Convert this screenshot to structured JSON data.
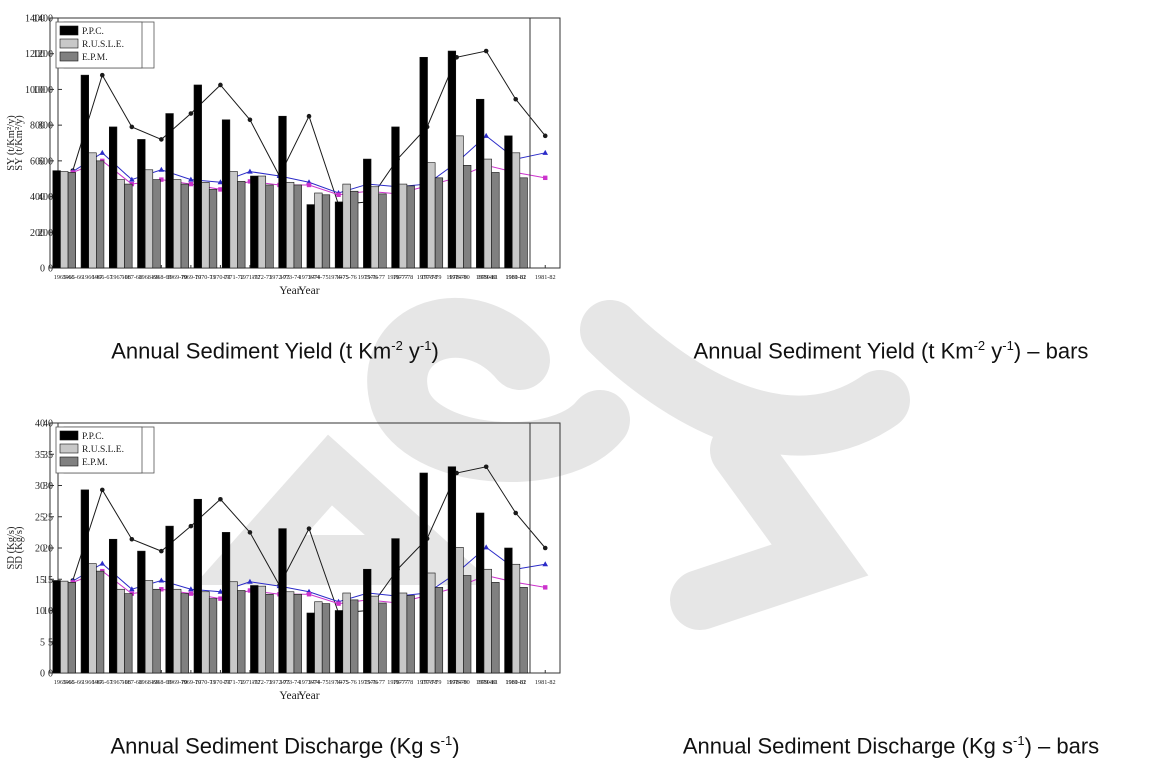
{
  "categories": [
    "1965-66",
    "1966-67",
    "1967-68",
    "1968-69",
    "1969-70",
    "1970-71",
    "1971-72",
    "1972-73",
    "1973-74",
    "1974-75",
    "1975-76",
    "1976-77",
    "1977-78",
    "1978-79",
    "1979-80",
    "1980-81",
    "1981-82"
  ],
  "captions": [
    {
      "text": "Annual Sediment Yield (t Km",
      "sup1": "-2",
      "mid": " y",
      "sup2": "-1",
      "tail": ")"
    },
    {
      "text": "Annual Sediment Yield (t Km",
      "sup1": "-2",
      "mid": " y",
      "sup2": "-1",
      "tail": ") – bars"
    },
    {
      "text": "Annual Sediment Discharge (Kg s",
      "sup1": "-1",
      "mid": "",
      "sup2": "",
      "tail": ")"
    },
    {
      "text": "Annual Sediment Discharge (Kg s",
      "sup1": "-1",
      "mid": "",
      "sup2": "",
      "tail": ") – bars"
    }
  ],
  "colors": {
    "ppc": "#1a1a1a",
    "rusle": "#2b2bc8",
    "epm": "#cc33cc",
    "bar_ppc": "#000000",
    "bar_rusle": "#c8c8c8",
    "bar_epm": "#808080"
  },
  "chart_data": [
    {
      "type": "line",
      "xlabel": "Year",
      "ylabel": "SY (t/Km²/y)",
      "ylim": [
        0,
        1400
      ],
      "yticks": [
        0,
        200,
        400,
        600,
        800,
        1000,
        1200,
        1400
      ],
      "legend": "top-left",
      "series": [
        {
          "name": "P.P.C.",
          "values": [
            545,
            1080,
            790,
            720,
            865,
            1025,
            830,
            515,
            850,
            355,
            370,
            610,
            790,
            1180,
            1215,
            945,
            740
          ]
        },
        {
          "name": "R.U.S.L.E.",
          "values": [
            540,
            645,
            495,
            550,
            495,
            480,
            540,
            515,
            480,
            420,
            470,
            455,
            470,
            590,
            740,
            610,
            645
          ]
        },
        {
          "name": "E.P.M.",
          "values": [
            535,
            600,
            470,
            495,
            470,
            440,
            485,
            465,
            465,
            410,
            430,
            415,
            460,
            505,
            575,
            535,
            505
          ]
        }
      ]
    },
    {
      "type": "bar",
      "xlabel": "Year",
      "ylabel": "SY (t/Km²/y)",
      "ylim": [
        0,
        1400
      ],
      "yticks": [
        0,
        200,
        400,
        600,
        800,
        1000,
        1200,
        1400
      ],
      "legend": "top-left",
      "series": [
        {
          "name": "P.P.C.",
          "values": [
            545,
            1080,
            790,
            720,
            865,
            1025,
            830,
            515,
            850,
            355,
            370,
            610,
            790,
            1180,
            1215,
            945,
            740
          ]
        },
        {
          "name": "R.U.S.L.E.",
          "values": [
            540,
            645,
            495,
            550,
            495,
            480,
            540,
            515,
            480,
            420,
            470,
            455,
            470,
            590,
            740,
            610,
            645
          ]
        },
        {
          "name": "E.P.M.",
          "values": [
            535,
            600,
            470,
            495,
            470,
            440,
            485,
            465,
            465,
            410,
            430,
            415,
            460,
            505,
            575,
            535,
            505
          ]
        }
      ]
    },
    {
      "type": "line",
      "xlabel": "Year",
      "ylabel": "SD (Kg/s)",
      "ylim": [
        0,
        40
      ],
      "yticks": [
        0,
        5,
        10,
        15,
        20,
        25,
        30,
        35,
        40
      ],
      "legend": "top-left",
      "series": [
        {
          "name": "P.P.C.",
          "values": [
            14.8,
            29.3,
            21.4,
            19.5,
            23.5,
            27.8,
            22.5,
            14.0,
            23.1,
            9.6,
            10.0,
            16.6,
            21.5,
            32.0,
            33.0,
            25.6,
            20.0
          ]
        },
        {
          "name": "R.U.S.L.E.",
          "values": [
            14.7,
            17.5,
            13.4,
            14.8,
            13.4,
            13.0,
            14.6,
            13.9,
            13.0,
            11.4,
            12.8,
            12.3,
            12.8,
            16.0,
            20.1,
            16.6,
            17.4
          ]
        },
        {
          "name": "E.P.M.",
          "values": [
            14.5,
            16.3,
            12.7,
            13.4,
            12.7,
            11.9,
            13.2,
            12.6,
            12.6,
            11.1,
            11.7,
            11.2,
            12.4,
            13.7,
            15.6,
            14.5,
            13.7
          ]
        }
      ]
    },
    {
      "type": "bar",
      "xlabel": "Year",
      "ylabel": "SD (Kg/s)",
      "ylim": [
        0,
        40
      ],
      "yticks": [
        0,
        5,
        10,
        15,
        20,
        25,
        30,
        35,
        40
      ],
      "legend": "top-left",
      "series": [
        {
          "name": "P.P.C.",
          "values": [
            14.8,
            29.3,
            21.4,
            19.5,
            23.5,
            27.8,
            22.5,
            14.0,
            23.1,
            9.6,
            10.0,
            16.6,
            21.5,
            32.0,
            33.0,
            25.6,
            20.0
          ]
        },
        {
          "name": "R.U.S.L.E.",
          "values": [
            14.7,
            17.5,
            13.4,
            14.8,
            13.4,
            13.0,
            14.6,
            13.9,
            13.0,
            11.4,
            12.8,
            12.3,
            12.8,
            16.0,
            20.1,
            16.6,
            17.4
          ]
        },
        {
          "name": "E.P.M.",
          "values": [
            14.5,
            16.3,
            12.7,
            13.4,
            12.7,
            11.9,
            13.2,
            12.6,
            12.6,
            11.1,
            11.7,
            11.2,
            12.4,
            13.7,
            15.6,
            14.5,
            13.7
          ]
        }
      ]
    }
  ]
}
